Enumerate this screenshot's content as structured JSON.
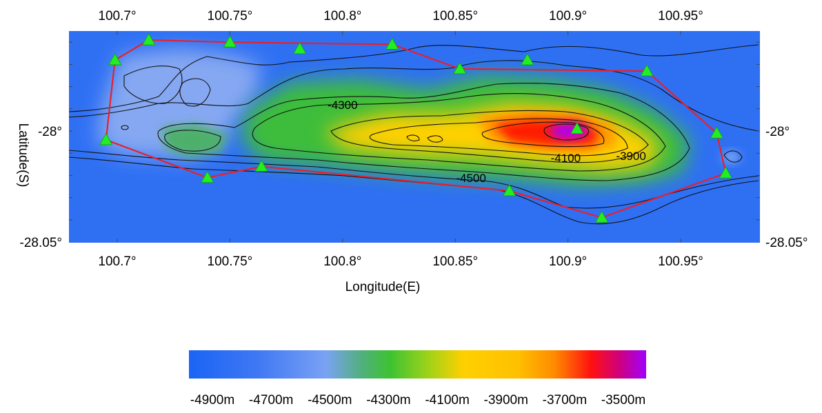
{
  "map": {
    "x_axis_title": "Longitude(E)",
    "y_axis_title": "Latitude(S)",
    "x_ticks": [
      {
        "value": 100.7,
        "label": "100.7°"
      },
      {
        "value": 100.75,
        "label": "100.75°"
      },
      {
        "value": 100.8,
        "label": "100.8°"
      },
      {
        "value": 100.85,
        "label": "100.85°"
      },
      {
        "value": 100.9,
        "label": "100.9°"
      },
      {
        "value": 100.95,
        "label": "100.95°"
      }
    ],
    "y_ticks": [
      {
        "value": -28.0,
        "label": "-28°"
      },
      {
        "value": -28.05,
        "label": "-28.05°"
      }
    ],
    "contour_labels": [
      {
        "lon": 100.8,
        "lat": -27.99,
        "text": "-4300"
      },
      {
        "lon": 100.899,
        "lat": -28.014,
        "text": "-4100"
      },
      {
        "lon": 100.928,
        "lat": -28.013,
        "text": "-3900"
      },
      {
        "lon": 100.857,
        "lat": -28.023,
        "text": "-4500"
      }
    ],
    "stations": [
      [
        100.699,
        -27.968
      ],
      [
        100.714,
        -27.959
      ],
      [
        100.75,
        -27.96
      ],
      [
        100.781,
        -27.963
      ],
      [
        100.822,
        -27.961
      ],
      [
        100.852,
        -27.972
      ],
      [
        100.882,
        -27.968
      ],
      [
        100.935,
        -27.973
      ],
      [
        100.966,
        -28.001
      ],
      [
        100.97,
        -28.019
      ],
      [
        100.915,
        -28.039
      ],
      [
        100.874,
        -28.027
      ],
      [
        100.904,
        -27.999
      ],
      [
        100.764,
        -28.016
      ],
      [
        100.74,
        -28.021
      ],
      [
        100.695,
        -28.004
      ]
    ],
    "survey_polygon": [
      [
        100.714,
        -27.959
      ],
      [
        100.75,
        -27.96
      ],
      [
        100.822,
        -27.961
      ],
      [
        100.852,
        -27.972
      ],
      [
        100.935,
        -27.973
      ],
      [
        100.966,
        -28.001
      ],
      [
        100.97,
        -28.019
      ],
      [
        100.915,
        -28.039
      ],
      [
        100.874,
        -28.027
      ],
      [
        100.764,
        -28.016
      ],
      [
        100.74,
        -28.021
      ],
      [
        100.695,
        -28.004
      ],
      [
        100.699,
        -27.968
      ]
    ]
  },
  "colorbar": {
    "labels": [
      "-4900m",
      "-4700m",
      "-4500m",
      "-4300m",
      "-4100m",
      "-3900m",
      "-3700m",
      "-3500m"
    ]
  },
  "colors": {
    "deep": "#2a6cf2",
    "ocean_light": "#6b9cf7",
    "green": "#33bb33",
    "yellow": "#ffd200",
    "orange": "#ffa500",
    "red": "#ff1a00",
    "purple": "#a000ff",
    "polygon": "#e8202a",
    "station": "#22ee22"
  }
}
